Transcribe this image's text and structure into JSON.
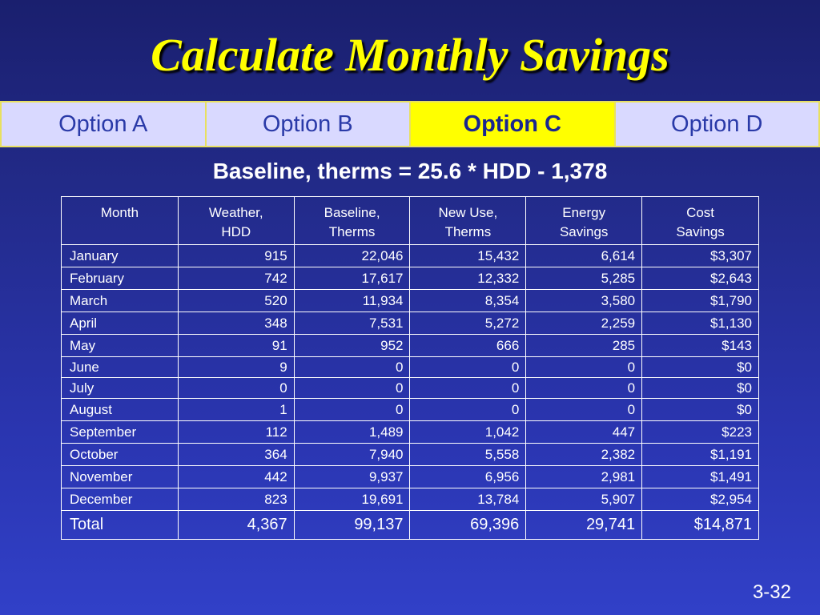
{
  "title": "Calculate Monthly Savings",
  "tabs": [
    {
      "label": "Option A",
      "active": false
    },
    {
      "label": "Option B",
      "active": false
    },
    {
      "label": "Option C",
      "active": true
    },
    {
      "label": "Option D",
      "active": false
    }
  ],
  "formula": "Baseline, therms = 25.6 * HDD - 1,378",
  "table": {
    "headers": [
      "Month",
      "Weather,\nHDD",
      "Baseline,\nTherms",
      "New Use,\nTherms",
      "Energy\nSavings",
      "Cost\nSavings"
    ],
    "rows": [
      [
        "January",
        "915",
        "22,046",
        "15,432",
        "6,614",
        "$3,307"
      ],
      [
        "February",
        "742",
        "17,617",
        "12,332",
        "5,285",
        "$2,643"
      ],
      [
        "March",
        "520",
        "11,934",
        "8,354",
        "3,580",
        "$1,790"
      ],
      [
        "April",
        "348",
        "7,531",
        "5,272",
        "2,259",
        "$1,130"
      ],
      [
        "May",
        "91",
        "952",
        "666",
        "285",
        "$143"
      ],
      [
        "June",
        "9",
        "0",
        "0",
        "0",
        "$0"
      ],
      [
        "July",
        "0",
        "0",
        "0",
        "0",
        "$0"
      ],
      [
        "August",
        "1",
        "0",
        "0",
        "0",
        "$0"
      ],
      [
        "September",
        "112",
        "1,489",
        "1,042",
        "447",
        "$223"
      ],
      [
        "October",
        "364",
        "7,940",
        "5,558",
        "2,382",
        "$1,191"
      ],
      [
        "November",
        "442",
        "9,937",
        "6,956",
        "2,981",
        "$1,491"
      ],
      [
        "December",
        "823",
        "19,691",
        "13,784",
        "5,907",
        "$2,954"
      ]
    ],
    "total": [
      "Total",
      "4,367",
      "99,137",
      "69,396",
      "29,741",
      "$14,871"
    ]
  },
  "page_number": "3-32",
  "colors": {
    "title": "#ffff00",
    "active_tab": "#ffff00",
    "tab_background": "#d9d9ff",
    "background": "#2a35b0"
  }
}
